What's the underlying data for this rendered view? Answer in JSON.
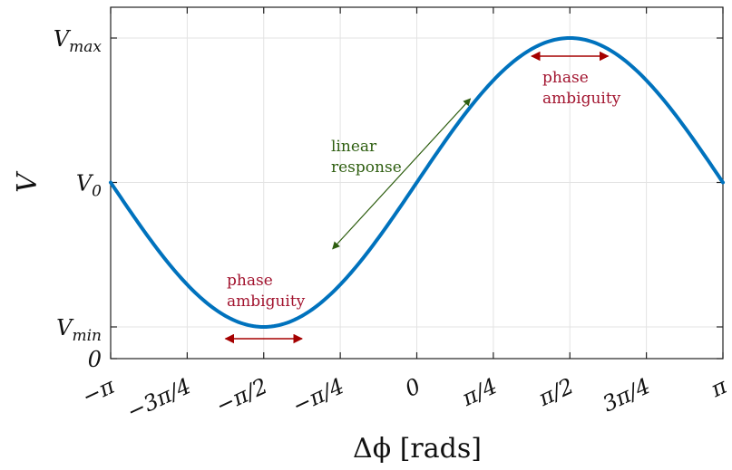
{
  "chart_data": {
    "type": "line",
    "title": "",
    "xlabel": "Δϕ [rads]",
    "ylabel": "V",
    "xlim": [
      -3.14159,
      3.14159
    ],
    "ylim": [
      0,
      1.1
    ],
    "grid": true,
    "x_ticks": [
      {
        "value": -3.14159,
        "label": "−π"
      },
      {
        "value": -2.35619,
        "label": "−3π/4"
      },
      {
        "value": -1.5708,
        "label": "−π/2"
      },
      {
        "value": -0.7854,
        "label": "−π/4"
      },
      {
        "value": 0,
        "label": "0"
      },
      {
        "value": 0.7854,
        "label": "π/4"
      },
      {
        "value": 1.5708,
        "label": "π/2"
      },
      {
        "value": 2.35619,
        "label": "3π/4"
      },
      {
        "value": 3.14159,
        "label": "π"
      }
    ],
    "y_ticks": [
      {
        "value": 0,
        "label": "0"
      },
      {
        "value": 0.1,
        "label": "V_min"
      },
      {
        "value": 0.6,
        "label": "V_0"
      },
      {
        "value": 1.1,
        "label": "V_max"
      }
    ],
    "series": [
      {
        "function": "sin",
        "offset": 0.6,
        "amplitude": 0.5,
        "color": "#0072BD"
      }
    ],
    "annotations": [
      {
        "text_lines": [
          "phase",
          "ambiguity"
        ],
        "color": "#A2142F",
        "arrow_color": "#A50000",
        "text_x": 1.5708,
        "text_y": 0.98,
        "arrow_x": [
          1.1781,
          1.9635
        ],
        "arrow_y": 1.0
      },
      {
        "text_lines": [
          "phase",
          "ambiguity"
        ],
        "color": "#A2142F",
        "arrow_color": "#A50000",
        "text_x": -2.0,
        "text_y": 0.2,
        "arrow_x": [
          -1.9635,
          -1.1781
        ],
        "arrow_y": 0.05
      },
      {
        "text_lines": [
          "linear",
          "response"
        ],
        "color": "#2E5E10",
        "arrow_color": "#2E5E10",
        "text_x": -0.55,
        "text_y": 0.7,
        "arrow_x": [
          -0.864,
          0.55
        ],
        "arrow_y": [
          0.37,
          0.89
        ]
      }
    ]
  }
}
